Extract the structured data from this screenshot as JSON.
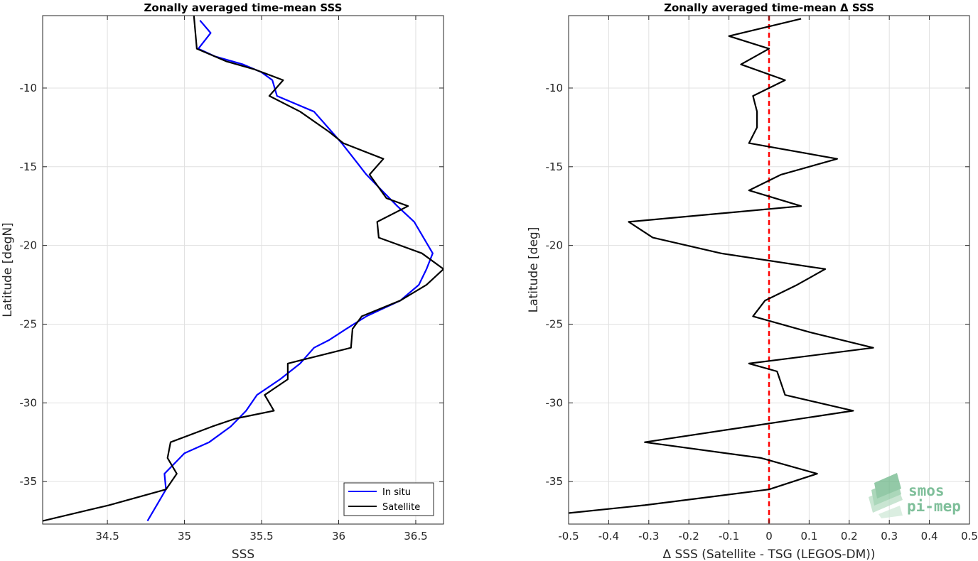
{
  "chart_data": [
    {
      "type": "line",
      "title": "Zonally averaged time-mean SSS",
      "xlabel": "SSS",
      "ylabel": "Latitude [degN]",
      "xlim": [
        34.08,
        36.68
      ],
      "ylim": [
        -37.7,
        -5.4
      ],
      "xticks": [
        34.5,
        35,
        35.5,
        36,
        36.5
      ],
      "xtick_labels": [
        "34.5",
        "35",
        "35.5",
        "36",
        "36.5"
      ],
      "yticks": [
        -35,
        -30,
        -25,
        -20,
        -15,
        -10
      ],
      "ytick_labels": [
        "-35",
        "-30",
        "-25",
        "-20",
        "-15",
        "-10"
      ],
      "grid": true,
      "legend": {
        "placement": "bottom-right"
      },
      "series": [
        {
          "name": "In situ",
          "color": "#0000ff",
          "points": [
            [
              35.1,
              -5.7
            ],
            [
              35.17,
              -6.5
            ],
            [
              35.09,
              -7.5
            ],
            [
              35.2,
              -8.0
            ],
            [
              35.38,
              -8.5
            ],
            [
              35.5,
              -9.0
            ],
            [
              35.57,
              -9.5
            ],
            [
              35.6,
              -10.5
            ],
            [
              35.84,
              -11.5
            ],
            [
              35.93,
              -12.5
            ],
            [
              36.02,
              -13.5
            ],
            [
              36.1,
              -14.5
            ],
            [
              36.18,
              -15.5
            ],
            [
              36.28,
              -16.5
            ],
            [
              36.38,
              -17.5
            ],
            [
              36.49,
              -18.5
            ],
            [
              36.55,
              -19.5
            ],
            [
              36.61,
              -20.5
            ],
            [
              36.57,
              -21.5
            ],
            [
              36.52,
              -22.5
            ],
            [
              36.4,
              -23.5
            ],
            [
              36.29,
              -24.0
            ],
            [
              36.18,
              -24.5
            ],
            [
              36.05,
              -25.3
            ],
            [
              35.94,
              -26.0
            ],
            [
              35.84,
              -26.5
            ],
            [
              35.75,
              -27.5
            ],
            [
              35.62,
              -28.5
            ],
            [
              35.47,
              -29.5
            ],
            [
              35.4,
              -30.5
            ],
            [
              35.35,
              -31.0
            ],
            [
              35.3,
              -31.5
            ],
            [
              35.16,
              -32.5
            ],
            [
              35.0,
              -33.2
            ],
            [
              34.87,
              -34.5
            ],
            [
              34.88,
              -35.5
            ],
            [
              34.82,
              -36.5
            ],
            [
              34.76,
              -37.5
            ]
          ]
        },
        {
          "name": "Satellite",
          "color": "#000000",
          "points": [
            [
              35.06,
              -5.3
            ],
            [
              35.08,
              -7.5
            ],
            [
              35.27,
              -8.3
            ],
            [
              35.45,
              -8.8
            ],
            [
              35.64,
              -9.5
            ],
            [
              35.55,
              -10.5
            ],
            [
              35.75,
              -11.5
            ],
            [
              35.94,
              -12.8
            ],
            [
              36.03,
              -13.5
            ],
            [
              36.29,
              -14.5
            ],
            [
              36.2,
              -15.5
            ],
            [
              36.31,
              -17.0
            ],
            [
              36.45,
              -17.5
            ],
            [
              36.25,
              -18.5
            ],
            [
              36.26,
              -19.5
            ],
            [
              36.54,
              -20.5
            ],
            [
              36.68,
              -21.5
            ],
            [
              36.57,
              -22.5
            ],
            [
              36.4,
              -23.5
            ],
            [
              36.15,
              -24.5
            ],
            [
              36.09,
              -25.3
            ],
            [
              36.08,
              -26.5
            ],
            [
              35.67,
              -27.5
            ],
            [
              35.67,
              -28.5
            ],
            [
              35.52,
              -29.5
            ],
            [
              35.58,
              -30.5
            ],
            [
              35.33,
              -31.0
            ],
            [
              35.18,
              -31.5
            ],
            [
              34.91,
              -32.5
            ],
            [
              34.89,
              -33.5
            ],
            [
              34.95,
              -34.5
            ],
            [
              34.88,
              -35.5
            ],
            [
              34.51,
              -36.5
            ],
            [
              34.08,
              -37.5
            ]
          ]
        }
      ]
    },
    {
      "type": "line",
      "title": "Zonally averaged time-mean Δ SSS",
      "xlabel": "Δ SSS (Satellite - TSG (LEGOS-DM))",
      "ylabel": "Latitude [deg]",
      "xlim": [
        -0.5,
        0.5
      ],
      "ylim": [
        -37.7,
        -5.4
      ],
      "xticks": [
        -0.5,
        -0.4,
        -0.3,
        -0.2,
        -0.1,
        0,
        0.1,
        0.2,
        0.3,
        0.4,
        0.5
      ],
      "xtick_labels": [
        "-0.5",
        "-0.4",
        "-0.3",
        "-0.2",
        "-0.1",
        "0",
        "0.1",
        "0.2",
        "0.3",
        "0.4",
        "0.5"
      ],
      "yticks": [
        -35,
        -30,
        -25,
        -20,
        -15,
        -10
      ],
      "ytick_labels": [
        "-35",
        "-30",
        "-25",
        "-20",
        "-15",
        "-10"
      ],
      "grid": true,
      "reference_line": {
        "x": 0,
        "color": "#ff0000",
        "style": "dashed"
      },
      "series": [
        {
          "color": "#000000",
          "points": [
            [
              0.08,
              -5.6
            ],
            [
              -0.1,
              -6.7
            ],
            [
              0.0,
              -7.5
            ],
            [
              -0.07,
              -8.5
            ],
            [
              0.04,
              -9.5
            ],
            [
              -0.04,
              -10.5
            ],
            [
              -0.03,
              -11.5
            ],
            [
              -0.03,
              -12.5
            ],
            [
              -0.05,
              -13.5
            ],
            [
              0.17,
              -14.5
            ],
            [
              0.03,
              -15.5
            ],
            [
              -0.05,
              -16.5
            ],
            [
              0.08,
              -17.5
            ],
            [
              -0.35,
              -18.5
            ],
            [
              -0.29,
              -19.5
            ],
            [
              -0.12,
              -20.5
            ],
            [
              0.14,
              -21.5
            ],
            [
              0.07,
              -22.5
            ],
            [
              -0.01,
              -23.5
            ],
            [
              -0.04,
              -24.5
            ],
            [
              0.1,
              -25.5
            ],
            [
              0.26,
              -26.5
            ],
            [
              -0.05,
              -27.5
            ],
            [
              0.02,
              -28.0
            ],
            [
              0.04,
              -29.5
            ],
            [
              0.21,
              -30.5
            ],
            [
              -0.05,
              -31.5
            ],
            [
              -0.31,
              -32.5
            ],
            [
              -0.02,
              -33.5
            ],
            [
              0.12,
              -34.5
            ],
            [
              0.0,
              -35.5
            ],
            [
              -0.31,
              -36.5
            ],
            [
              -0.5,
              -37.0
            ]
          ]
        }
      ]
    }
  ],
  "legend_labels": {
    "insitu": "In situ",
    "satellite": "Satellite"
  },
  "logo": {
    "line1": "smos",
    "line2": "pi-mep"
  }
}
